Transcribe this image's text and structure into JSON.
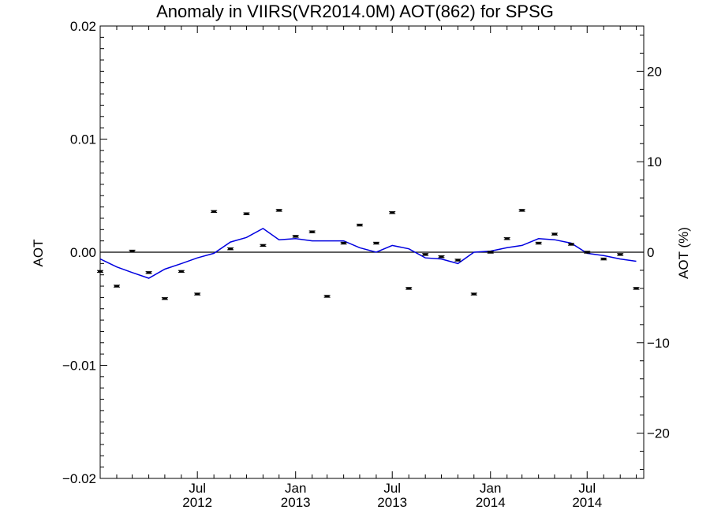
{
  "chart_data": {
    "type": "line",
    "title": "Anomaly in VIIRS(VR2014.0M) AOT(862) for SPSG",
    "ylabel": "AOT",
    "ylabel_right": "AOT (%)",
    "ylim": [
      -0.02,
      0.02
    ],
    "ylim_right": [
      -25,
      25
    ],
    "yticks": [
      -0.02,
      -0.01,
      0.0,
      0.01,
      0.02
    ],
    "yticks_labels": [
      "−0.02",
      "−0.01",
      "0.00",
      "0.01",
      "0.02"
    ],
    "yticks_right": [
      -20,
      -10,
      0,
      10,
      20
    ],
    "yticks_right_labels": [
      "−20",
      "−10",
      "0",
      "10",
      "20"
    ],
    "x_range": [
      "2012-01-01",
      "2014-10-15"
    ],
    "xticks": [
      {
        "date": "2012-07-01",
        "top": "Jul",
        "bottom": "2012"
      },
      {
        "date": "2013-01-01",
        "top": "Jan",
        "bottom": "2013"
      },
      {
        "date": "2013-07-01",
        "top": "Jul",
        "bottom": "2013"
      },
      {
        "date": "2014-01-01",
        "top": "Jan",
        "bottom": "2014"
      },
      {
        "date": "2014-07-01",
        "top": "Jul",
        "bottom": "2014"
      }
    ],
    "zero_line": true,
    "series": [
      {
        "type": "point",
        "color": "#000000",
        "points": [
          {
            "x": "2012-01-01",
            "y": -0.0017
          },
          {
            "x": "2012-02-01",
            "y": -0.003
          },
          {
            "x": "2012-03-01",
            "y": 0.0001
          },
          {
            "x": "2012-04-01",
            "y": -0.0018
          },
          {
            "x": "2012-05-01",
            "y": -0.0041
          },
          {
            "x": "2012-06-01",
            "y": -0.0017
          },
          {
            "x": "2012-07-01",
            "y": -0.0037
          },
          {
            "x": "2012-08-01",
            "y": 0.0036
          },
          {
            "x": "2012-09-01",
            "y": 0.0003
          },
          {
            "x": "2012-10-01",
            "y": 0.0034
          },
          {
            "x": "2012-11-01",
            "y": 0.0006
          },
          {
            "x": "2012-12-01",
            "y": 0.0037
          },
          {
            "x": "2013-01-01",
            "y": 0.0014
          },
          {
            "x": "2013-02-01",
            "y": 0.0018
          },
          {
            "x": "2013-03-01",
            "y": -0.0039
          },
          {
            "x": "2013-04-01",
            "y": 0.0008
          },
          {
            "x": "2013-05-01",
            "y": 0.0024
          },
          {
            "x": "2013-06-01",
            "y": 0.0008
          },
          {
            "x": "2013-07-01",
            "y": 0.0035
          },
          {
            "x": "2013-08-01",
            "y": -0.0032
          },
          {
            "x": "2013-09-01",
            "y": -0.0002
          },
          {
            "x": "2013-10-01",
            "y": -0.0004
          },
          {
            "x": "2013-11-01",
            "y": -0.0007
          },
          {
            "x": "2013-12-01",
            "y": -0.0037
          },
          {
            "x": "2014-01-01",
            "y": 0.0
          },
          {
            "x": "2014-02-01",
            "y": 0.0012
          },
          {
            "x": "2014-03-01",
            "y": 0.0037
          },
          {
            "x": "2014-04-01",
            "y": 0.0008
          },
          {
            "x": "2014-05-01",
            "y": 0.0016
          },
          {
            "x": "2014-06-01",
            "y": 0.0007
          },
          {
            "x": "2014-07-01",
            "y": 0.0
          },
          {
            "x": "2014-08-01",
            "y": -0.0006
          },
          {
            "x": "2014-09-01",
            "y": -0.0002
          },
          {
            "x": "2014-10-01",
            "y": -0.0032
          }
        ]
      },
      {
        "type": "line",
        "color": "#0000e0",
        "points": [
          {
            "x": "2012-01-01",
            "y": -0.0006
          },
          {
            "x": "2012-02-01",
            "y": -0.0013
          },
          {
            "x": "2012-03-01",
            "y": -0.0018
          },
          {
            "x": "2012-04-01",
            "y": -0.0023
          },
          {
            "x": "2012-05-01",
            "y": -0.0015
          },
          {
            "x": "2012-06-01",
            "y": -0.001
          },
          {
            "x": "2012-07-01",
            "y": -0.0005
          },
          {
            "x": "2012-08-01",
            "y": -0.0001
          },
          {
            "x": "2012-09-01",
            "y": 0.0009
          },
          {
            "x": "2012-10-01",
            "y": 0.0013
          },
          {
            "x": "2012-11-01",
            "y": 0.0021
          },
          {
            "x": "2012-12-01",
            "y": 0.0011
          },
          {
            "x": "2013-01-01",
            "y": 0.0012
          },
          {
            "x": "2013-02-01",
            "y": 0.001
          },
          {
            "x": "2013-03-01",
            "y": 0.001
          },
          {
            "x": "2013-04-01",
            "y": 0.001
          },
          {
            "x": "2013-05-01",
            "y": 0.0004
          },
          {
            "x": "2013-06-01",
            "y": 0.0
          },
          {
            "x": "2013-07-01",
            "y": 0.0006
          },
          {
            "x": "2013-08-01",
            "y": 0.0003
          },
          {
            "x": "2013-09-01",
            "y": -0.0005
          },
          {
            "x": "2013-10-01",
            "y": -0.0006
          },
          {
            "x": "2013-11-01",
            "y": -0.001
          },
          {
            "x": "2013-12-01",
            "y": -0.0
          },
          {
            "x": "2014-01-01",
            "y": 0.0001
          },
          {
            "x": "2014-02-01",
            "y": 0.0004
          },
          {
            "x": "2014-03-01",
            "y": 0.0006
          },
          {
            "x": "2014-04-01",
            "y": 0.0012
          },
          {
            "x": "2014-05-01",
            "y": 0.0011
          },
          {
            "x": "2014-06-01",
            "y": 0.0008
          },
          {
            "x": "2014-07-01",
            "y": -0.0001
          },
          {
            "x": "2014-08-01",
            "y": -0.0003
          },
          {
            "x": "2014-09-01",
            "y": -0.0006
          },
          {
            "x": "2014-10-01",
            "y": -0.0008
          }
        ]
      }
    ]
  }
}
